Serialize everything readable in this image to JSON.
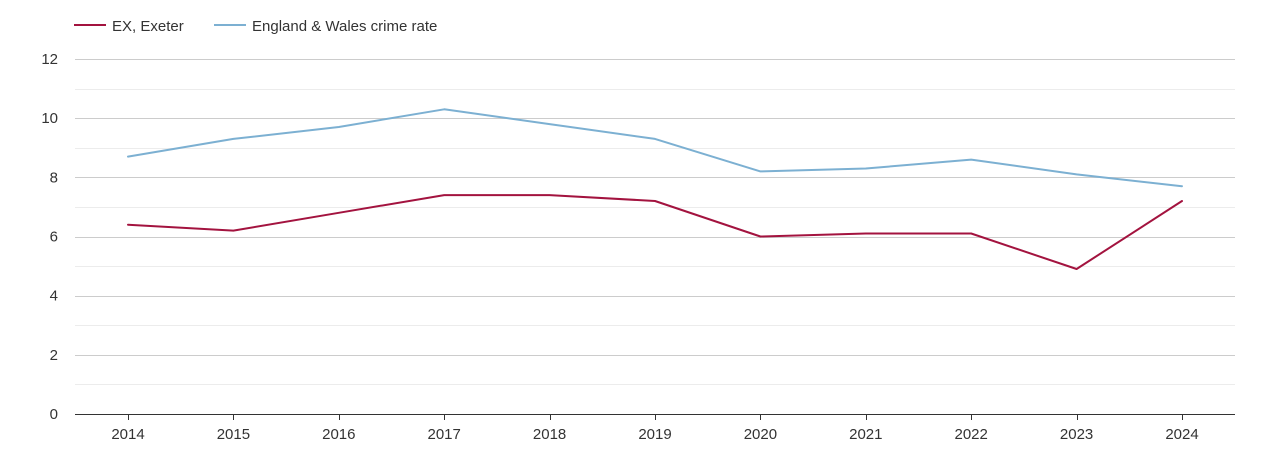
{
  "chart_data": {
    "type": "line",
    "title": "",
    "xlabel": "",
    "ylabel": "",
    "x": [
      "2014",
      "2015",
      "2016",
      "2017",
      "2018",
      "2019",
      "2020",
      "2021",
      "2022",
      "2023",
      "2024"
    ],
    "ylim": [
      0,
      12
    ],
    "yticks": [
      "0",
      "2",
      "4",
      "6",
      "8",
      "10",
      "12"
    ],
    "grid": true,
    "legend_position": "top-left",
    "series": [
      {
        "name": "EX, Exeter",
        "color": "#a3133f",
        "values": [
          6.4,
          6.2,
          6.8,
          7.4,
          7.4,
          7.2,
          6.0,
          6.1,
          6.1,
          4.9,
          7.2
        ]
      },
      {
        "name": "England & Wales crime rate",
        "color": "#7cb0d2",
        "values": [
          8.7,
          9.3,
          9.7,
          10.3,
          9.8,
          9.3,
          8.2,
          8.3,
          8.6,
          8.1,
          7.7
        ]
      }
    ]
  }
}
